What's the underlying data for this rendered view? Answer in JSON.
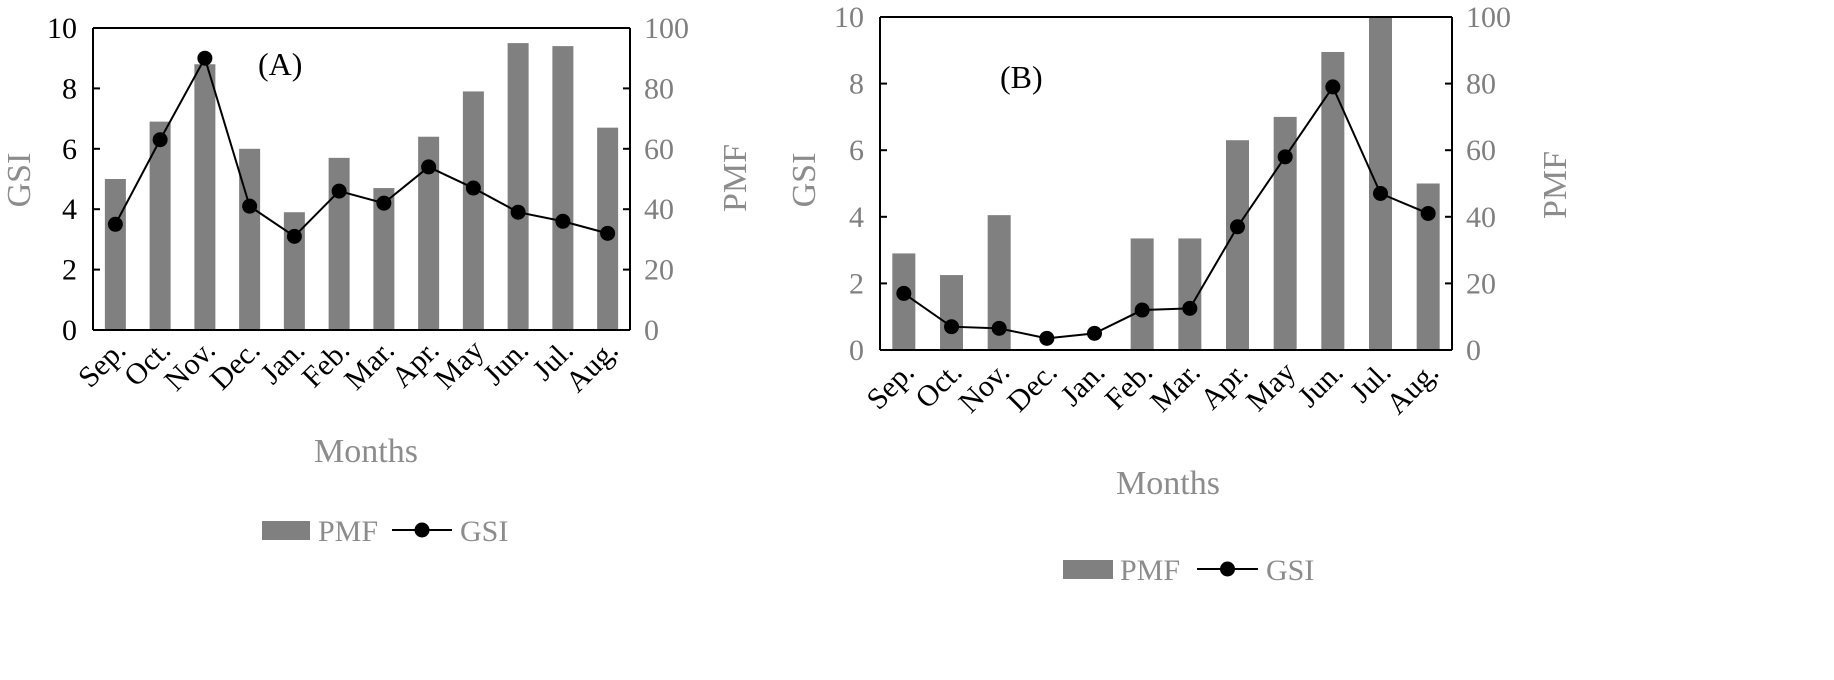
{
  "chart_data": [
    {
      "type": "bar",
      "panel_label": "(A)",
      "categories": [
        "Sep.",
        "Oct.",
        "Nov.",
        "Dec.",
        "Jan.",
        "Feb.",
        "Mar.",
        "Apr.",
        "May",
        "Jun.",
        "Jul.",
        "Aug."
      ],
      "series": [
        {
          "name": "PMF",
          "kind": "bar",
          "axis": "right",
          "color": "#808080",
          "values": [
            50,
            69,
            88,
            60,
            39,
            57,
            47,
            64,
            79,
            95,
            94,
            67
          ]
        },
        {
          "name": "GSI",
          "kind": "line",
          "axis": "left",
          "color": "#000000",
          "values": [
            3.5,
            6.3,
            9.0,
            4.1,
            3.1,
            4.6,
            4.2,
            5.4,
            4.7,
            3.9,
            3.6,
            3.2
          ]
        }
      ],
      "xlabel": "Months",
      "ylabel": "GSI",
      "y2label": "PMF",
      "ylim": [
        0,
        10
      ],
      "y2lim": [
        0,
        100
      ],
      "yticks": [
        "0",
        "2",
        "4",
        "6",
        "8",
        "10"
      ],
      "y2ticks": [
        "0",
        "20",
        "40",
        "60",
        "80",
        "100"
      ],
      "grid": false,
      "legend": {
        "position": "bottom",
        "items": [
          "PMF",
          "GSI"
        ]
      }
    },
    {
      "type": "bar",
      "panel_label": "(B)",
      "categories": [
        "Sep.",
        "Oct.",
        "Nov.",
        "Dec.",
        "Jan.",
        "Feb.",
        "Mar.",
        "Apr.",
        "May",
        "Jun.",
        "Jul.",
        "Aug."
      ],
      "series": [
        {
          "name": "PMF",
          "kind": "bar",
          "axis": "right",
          "color": "#808080",
          "values": [
            29,
            22.5,
            40.5,
            0,
            0,
            33.5,
            33.5,
            63,
            70,
            89.5,
            100,
            50
          ]
        },
        {
          "name": "GSI",
          "kind": "line",
          "axis": "left",
          "color": "#000000",
          "values": [
            1.7,
            0.7,
            0.65,
            0.35,
            0.5,
            1.2,
            1.25,
            3.7,
            5.8,
            7.9,
            4.7,
            4.1
          ]
        }
      ],
      "xlabel": "Months",
      "ylabel": "GSI",
      "y2label": "PMF",
      "ylim": [
        0,
        10
      ],
      "y2lim": [
        0,
        100
      ],
      "yticks": [
        "0",
        "2",
        "4",
        "6",
        "8",
        "10"
      ],
      "y2ticks": [
        "0",
        "20",
        "40",
        "60",
        "80",
        "100"
      ],
      "grid": false,
      "legend": {
        "position": "bottom",
        "items": [
          "PMF",
          "GSI"
        ]
      }
    }
  ]
}
